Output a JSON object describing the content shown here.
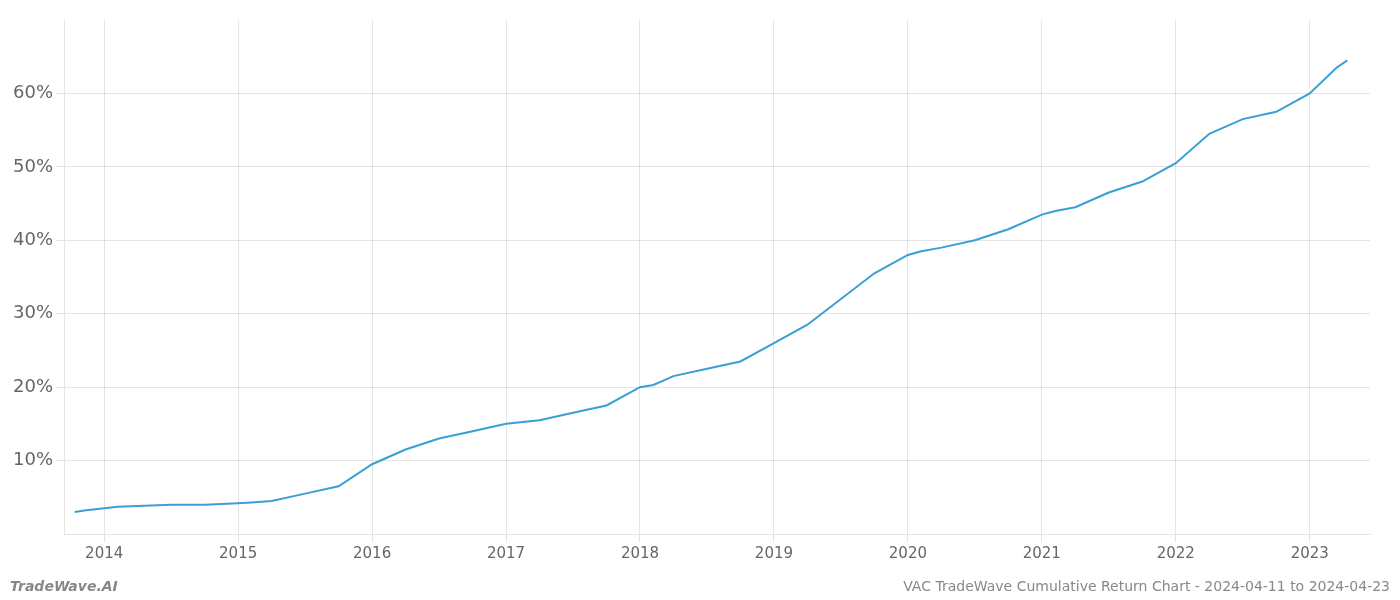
{
  "chart_data": {
    "type": "line",
    "title": "VAC TradeWave Cumulative Return Chart - 2024-04-11 to 2024-04-23",
    "annotations": [
      "TradeWave.AI"
    ],
    "color": "#3a9fd4",
    "grid": true,
    "x": [
      2013.78,
      2013.85,
      2014.0,
      2014.1,
      2014.25,
      2014.5,
      2014.75,
      2015.0,
      2015.1,
      2015.25,
      2015.5,
      2015.75,
      2016.0,
      2016.25,
      2016.5,
      2016.75,
      2017.0,
      2017.25,
      2017.5,
      2017.75,
      2018.0,
      2018.1,
      2018.25,
      2018.5,
      2018.75,
      2019.0,
      2019.25,
      2019.5,
      2019.75,
      2020.0,
      2020.1,
      2020.25,
      2020.5,
      2020.75,
      2021.0,
      2021.1,
      2021.25,
      2021.5,
      2021.75,
      2022.0,
      2022.25,
      2022.5,
      2022.75,
      2023.0,
      2023.2,
      2023.28
    ],
    "values": [
      3.0,
      3.2,
      3.5,
      3.7,
      3.8,
      4.0,
      4.0,
      4.2,
      4.3,
      4.5,
      5.5,
      6.5,
      9.5,
      11.5,
      13.0,
      14.0,
      15.0,
      15.5,
      16.5,
      17.5,
      20.0,
      20.3,
      21.5,
      22.5,
      23.5,
      26.0,
      28.5,
      32.0,
      35.5,
      38.0,
      38.5,
      39.0,
      40.0,
      41.5,
      43.5,
      44.0,
      44.5,
      46.5,
      48.0,
      50.5,
      54.5,
      56.5,
      57.5,
      60.0,
      63.5,
      64.5
    ],
    "xlim": [
      2013.7,
      2023.45
    ],
    "xticks": [
      2014,
      2015,
      2016,
      2017,
      2018,
      2019,
      2020,
      2021,
      2022,
      2023
    ],
    "ylim": [
      0,
      70
    ],
    "yticks": [
      {
        "value": 10,
        "label": "10%"
      },
      {
        "value": 20,
        "label": "20%"
      },
      {
        "value": 30,
        "label": "30%"
      },
      {
        "value": 40,
        "label": "40%"
      },
      {
        "value": 50,
        "label": "50%"
      },
      {
        "value": 60,
        "label": "60%"
      }
    ]
  }
}
